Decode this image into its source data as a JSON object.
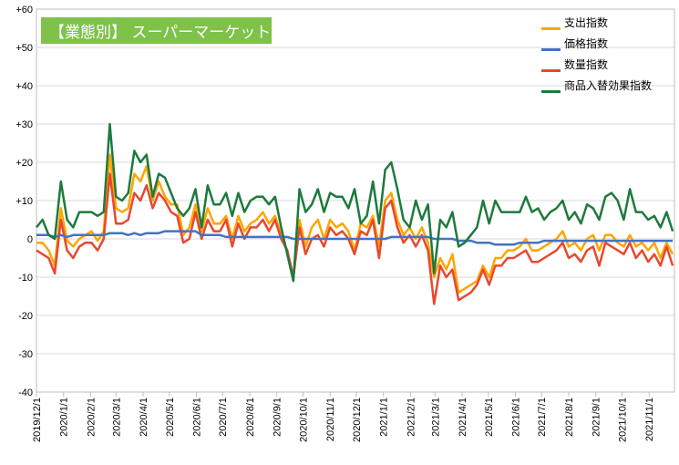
{
  "chart_data": {
    "type": "line",
    "title": "【業態別】 スーパーマーケット",
    "xlabel": "",
    "ylabel": "",
    "ylim": [
      -40,
      60
    ],
    "y_ticks": [
      "+60",
      "+50",
      "+40",
      "+30",
      "+20",
      "+10",
      "0",
      "-10",
      "-20",
      "-30",
      "-40"
    ],
    "y_tick_values": [
      60,
      50,
      40,
      30,
      20,
      10,
      0,
      -10,
      -20,
      -30,
      -40
    ],
    "x_start": "2019-12-01",
    "x_end": "2021-11-30",
    "x_tick_dates": [
      "2019-12-01",
      "2020-01-01",
      "2020-02-01",
      "2020-03-01",
      "2020-04-01",
      "2020-05-01",
      "2020-06-01",
      "2020-07-01",
      "2020-08-01",
      "2020-09-01",
      "2020-10-01",
      "2020-11-01",
      "2020-12-01",
      "2021-01-01",
      "2021-02-01",
      "2021-03-01",
      "2021-04-01",
      "2021-05-01",
      "2021-06-01",
      "2021-07-01",
      "2021-08-01",
      "2021-09-01",
      "2021-10-01",
      "2021-11-01"
    ],
    "x_tick_labels": [
      "2019/12/1",
      "2020/1/1",
      "2020/2/1",
      "2020/3/1",
      "2020/4/1",
      "2020/5/1",
      "2020/6/1",
      "2020/7/1",
      "2020/8/1",
      "2020/9/1",
      "2020/10/1",
      "2020/11/1",
      "2020/12/1",
      "2021/1/1",
      "2021/2/1",
      "2021/3/1",
      "2021/4/1",
      "2021/5/1",
      "2021/6/1",
      "2021/7/1",
      "2021/8/1",
      "2021/9/1",
      "2021/10/1",
      "2021/11/1"
    ],
    "grid": true,
    "legend_position": "top-right",
    "x": [
      "2019-12-01",
      "2019-12-08",
      "2019-12-15",
      "2019-12-22",
      "2019-12-29",
      "2020-01-05",
      "2020-01-12",
      "2020-01-19",
      "2020-01-26",
      "2020-02-02",
      "2020-02-09",
      "2020-02-16",
      "2020-02-23",
      "2020-03-01",
      "2020-03-08",
      "2020-03-15",
      "2020-03-22",
      "2020-03-29",
      "2020-04-05",
      "2020-04-12",
      "2020-04-19",
      "2020-04-26",
      "2020-05-03",
      "2020-05-10",
      "2020-05-17",
      "2020-05-24",
      "2020-05-31",
      "2020-06-07",
      "2020-06-14",
      "2020-06-21",
      "2020-06-28",
      "2020-07-05",
      "2020-07-12",
      "2020-07-19",
      "2020-07-26",
      "2020-08-02",
      "2020-08-09",
      "2020-08-16",
      "2020-08-23",
      "2020-08-30",
      "2020-09-06",
      "2020-09-13",
      "2020-09-20",
      "2020-09-27",
      "2020-10-04",
      "2020-10-11",
      "2020-10-18",
      "2020-10-25",
      "2020-11-01",
      "2020-11-08",
      "2020-11-15",
      "2020-11-22",
      "2020-11-29",
      "2020-12-06",
      "2020-12-13",
      "2020-12-20",
      "2020-12-27",
      "2021-01-03",
      "2021-01-10",
      "2021-01-17",
      "2021-01-24",
      "2021-01-31",
      "2021-02-07",
      "2021-02-14",
      "2021-02-21",
      "2021-02-28",
      "2021-03-07",
      "2021-03-14",
      "2021-03-21",
      "2021-03-28",
      "2021-04-04",
      "2021-04-11",
      "2021-04-18",
      "2021-04-25",
      "2021-05-02",
      "2021-05-09",
      "2021-05-16",
      "2021-05-23",
      "2021-05-30",
      "2021-06-06",
      "2021-06-13",
      "2021-06-20",
      "2021-06-27",
      "2021-07-04",
      "2021-07-11",
      "2021-07-18",
      "2021-07-25",
      "2021-08-01",
      "2021-08-08",
      "2021-08-15",
      "2021-08-22",
      "2021-08-29",
      "2021-09-05",
      "2021-09-12",
      "2021-09-19",
      "2021-09-26",
      "2021-10-03",
      "2021-10-10",
      "2021-10-17",
      "2021-10-24",
      "2021-10-31",
      "2021-11-07",
      "2021-11-14",
      "2021-11-21",
      "2021-11-28"
    ],
    "series": [
      {
        "name": "支出指数",
        "color": "#ffa500",
        "values": [
          -1,
          -1,
          -3,
          -7,
          8,
          -0.5,
          -2,
          0,
          1,
          2,
          -0.5,
          2,
          22,
          8,
          7,
          8,
          17,
          15,
          19,
          10,
          15,
          11,
          9,
          9,
          1,
          3,
          9,
          2,
          8,
          4,
          4,
          6,
          0,
          6,
          2,
          4,
          5,
          7,
          4,
          6,
          1,
          -3,
          -10,
          5,
          -2,
          3,
          5,
          0,
          5,
          3,
          4,
          2,
          -3,
          4,
          3,
          6,
          -2,
          10,
          12,
          5,
          1,
          3,
          0,
          3,
          -1,
          -10,
          -5,
          -8,
          -4,
          -14,
          -13,
          -12,
          -11,
          -7,
          -10,
          -5,
          -5,
          -3,
          -3,
          -2,
          0,
          -3,
          -3,
          -2,
          -1,
          0,
          2,
          -2,
          -1,
          -3,
          0,
          1,
          -3,
          1,
          1,
          -1,
          -2,
          1,
          -2,
          -1,
          -3,
          -1,
          -5,
          -1,
          -4
        ]
      },
      {
        "name": "価格指数",
        "color": "#4472c4",
        "values": [
          1,
          1,
          1,
          0.5,
          1,
          0.5,
          1,
          1,
          1,
          1,
          1,
          1,
          1.5,
          1.5,
          1.5,
          1,
          1.5,
          1,
          1.5,
          1.5,
          1.5,
          2,
          2,
          2,
          2,
          2,
          2,
          1,
          1,
          1,
          1,
          0.5,
          0.5,
          0.5,
          0.5,
          0.5,
          0.5,
          0.5,
          0.5,
          0.5,
          0.5,
          0.5,
          0,
          0,
          0,
          0,
          0,
          0,
          0,
          0,
          0,
          0,
          0,
          0,
          0,
          0,
          0,
          0,
          0.5,
          0.5,
          0.5,
          0.5,
          0.5,
          0.5,
          0.5,
          0,
          0,
          0,
          0,
          -0.5,
          -0.5,
          -0.5,
          -1,
          -1,
          -1,
          -1.5,
          -1.5,
          -1.5,
          -1.5,
          -1,
          -1,
          -1,
          -1,
          -0.5,
          -0.5,
          -0.5,
          -0.5,
          -0.5,
          -0.5,
          -0.5,
          -0.5,
          -0.5,
          -0.5,
          -0.5,
          -0.5,
          -0.5,
          -0.5,
          -0.5,
          -0.5,
          -0.5,
          -0.5,
          -0.5,
          -0.5,
          -0.5,
          -0.5
        ]
      },
      {
        "name": "数量指数",
        "color": "#e8482f",
        "values": [
          -3,
          -4,
          -5,
          -9,
          5,
          -3,
          -5,
          -2,
          -1,
          -1,
          -3,
          0,
          17,
          4,
          4,
          5,
          12,
          10,
          14,
          8,
          12,
          10,
          7,
          6,
          -1,
          0,
          7,
          0,
          5,
          2,
          2,
          5,
          -2,
          4,
          0,
          3,
          3,
          5,
          2,
          5,
          0,
          -3,
          -10,
          3,
          -4,
          0,
          1,
          -2,
          3,
          1,
          2,
          0,
          -4,
          2,
          1,
          5,
          -5,
          8,
          10,
          3,
          -1,
          1,
          -2,
          1,
          -3,
          -17,
          -7,
          -10,
          -8,
          -16,
          -15,
          -14,
          -12,
          -8,
          -12,
          -7,
          -7,
          -5,
          -5,
          -4,
          -3,
          -6,
          -6,
          -5,
          -4,
          -3,
          -1,
          -5,
          -4,
          -6,
          -3,
          -2,
          -7,
          -1,
          -2,
          -3,
          -4,
          -1,
          -5,
          -3,
          -6,
          -4,
          -7,
          -2,
          -7
        ]
      },
      {
        "name": "商品入替効果指数",
        "color": "#1e7a3c",
        "values": [
          3,
          5,
          1,
          0,
          15,
          5,
          3,
          7,
          7,
          7,
          6,
          7,
          30,
          11,
          10,
          12,
          23,
          20,
          22,
          11,
          17,
          16,
          12,
          8,
          6,
          8,
          13,
          3,
          14,
          9,
          9,
          12,
          6,
          12,
          7,
          10,
          11,
          11,
          9,
          11,
          3,
          -4,
          -11,
          13,
          7,
          9,
          13,
          7,
          12,
          11,
          11,
          8,
          13,
          4,
          6,
          15,
          4,
          18,
          20,
          13,
          5,
          3,
          10,
          5,
          9,
          -9,
          5,
          3,
          7,
          -2,
          -1,
          1,
          3,
          10,
          4,
          10,
          7,
          7,
          7,
          7,
          11,
          7,
          8,
          5,
          7,
          8,
          10,
          5,
          7,
          4,
          9,
          8,
          5,
          11,
          12,
          10,
          5,
          13,
          7,
          7,
          5,
          6,
          3,
          7,
          2
        ]
      }
    ]
  }
}
